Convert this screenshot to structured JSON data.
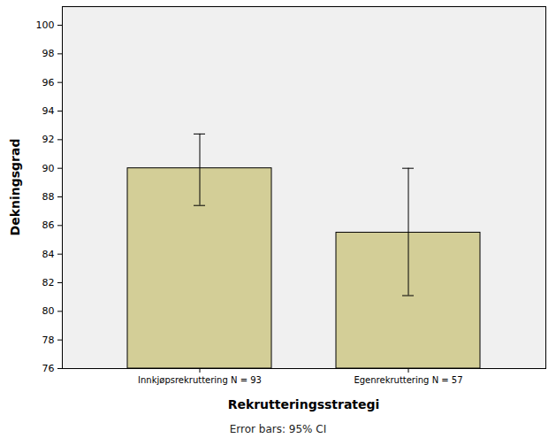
{
  "chart_data": {
    "type": "bar",
    "x_label": "Rekrutteringsstrategi",
    "y_label": "Dekningsgrad",
    "caption": "Error bars: 95% CI",
    "categories": [
      "Innkjøpsrekruttering N = 93",
      "Egenrekruttering N = 57"
    ],
    "values": [
      90.0,
      85.5
    ],
    "ci_low": [
      87.4,
      81.1
    ],
    "ci_high": [
      92.4,
      90.0
    ],
    "color": "#d3ce97",
    "ylim": [
      76,
      101.3
    ],
    "yticks": [
      76,
      78,
      80,
      82,
      84,
      86,
      88,
      90,
      92,
      94,
      96,
      98,
      100
    ],
    "grid": false
  }
}
